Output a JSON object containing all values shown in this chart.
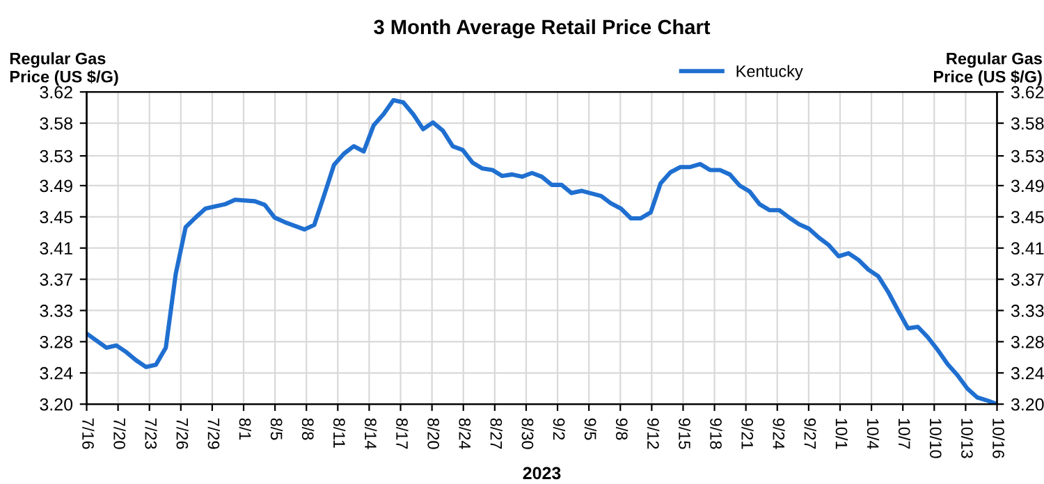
{
  "chart_data": {
    "type": "line",
    "title": "3 Month Average Retail Price Chart",
    "xlabel": "2023",
    "ylabel": "Regular Gas\nPrice (US $/G)",
    "y2label": "Regular Gas\nPrice (US $/G)",
    "x": [
      "2023-07-16",
      "2023-07-18",
      "2023-07-19",
      "2023-07-20",
      "2023-07-21",
      "2023-07-22",
      "2023-07-23",
      "2023-07-24",
      "2023-07-25",
      "2023-07-26",
      "2023-07-27",
      "2023-07-28",
      "2023-07-29",
      "2023-07-30",
      "2023-07-31",
      "2023-08-02",
      "2023-08-03",
      "2023-08-04",
      "2023-08-05",
      "2023-08-07",
      "2023-08-08",
      "2023-08-09",
      "2023-08-10",
      "2023-08-11",
      "2023-08-12",
      "2023-08-13",
      "2023-08-14",
      "2023-08-15",
      "2023-08-16",
      "2023-08-17",
      "2023-08-18",
      "2023-08-19",
      "2023-08-20",
      "2023-08-21",
      "2023-08-22",
      "2023-08-23",
      "2023-08-24",
      "2023-08-25",
      "2023-08-26",
      "2023-08-27",
      "2023-08-28",
      "2023-08-29",
      "2023-08-30",
      "2023-08-31",
      "2023-09-01",
      "2023-09-02",
      "2023-09-03",
      "2023-09-04",
      "2023-09-06",
      "2023-09-07",
      "2023-09-08",
      "2023-09-09",
      "2023-09-10",
      "2023-09-11",
      "2023-09-12",
      "2023-09-13",
      "2023-09-14",
      "2023-09-15",
      "2023-09-16",
      "2023-09-17",
      "2023-09-18",
      "2023-09-19",
      "2023-09-20",
      "2023-09-21",
      "2023-09-22",
      "2023-09-23",
      "2023-09-24",
      "2023-09-25",
      "2023-09-26",
      "2023-09-27",
      "2023-09-28",
      "2023-09-29",
      "2023-09-30",
      "2023-10-01",
      "2023-10-02",
      "2023-10-03",
      "2023-10-04",
      "2023-10-05",
      "2023-10-06",
      "2023-10-07",
      "2023-10-08",
      "2023-10-09",
      "2023-10-10",
      "2023-10-11",
      "2023-10-12",
      "2023-10-13",
      "2023-10-14",
      "2023-10-15",
      "2023-10-16"
    ],
    "series": [
      {
        "name": "Kentucky",
        "color": "#1f6fd0",
        "values": [
          3.295,
          3.276,
          3.279,
          3.27,
          3.259,
          3.25,
          3.253,
          3.276,
          3.375,
          3.438,
          3.451,
          3.463,
          3.466,
          3.469,
          3.475,
          3.473,
          3.468,
          3.451,
          3.445,
          3.435,
          3.441,
          3.481,
          3.522,
          3.537,
          3.547,
          3.54,
          3.575,
          3.59,
          3.609,
          3.606,
          3.59,
          3.57,
          3.579,
          3.568,
          3.547,
          3.542,
          3.525,
          3.517,
          3.515,
          3.507,
          3.509,
          3.506,
          3.511,
          3.506,
          3.495,
          3.495,
          3.484,
          3.487,
          3.48,
          3.47,
          3.463,
          3.45,
          3.45,
          3.458,
          3.497,
          3.512,
          3.519,
          3.519,
          3.523,
          3.515,
          3.515,
          3.509,
          3.494,
          3.486,
          3.469,
          3.461,
          3.461,
          3.451,
          3.442,
          3.436,
          3.424,
          3.414,
          3.399,
          3.403,
          3.394,
          3.381,
          3.372,
          3.351,
          3.326,
          3.302,
          3.304,
          3.29,
          3.273,
          3.254,
          3.239,
          3.221,
          3.209,
          3.205,
          3.2
        ]
      }
    ],
    "xlim": [
      "2023-07-16",
      "2023-10-16"
    ],
    "xticks": [
      {
        "value": "2023-07-16T00:00",
        "label": "7/16"
      },
      {
        "value": "2023-07-19T04:08",
        "label": "7/20"
      },
      {
        "value": "2023-07-22T08:17",
        "label": "7/23"
      },
      {
        "value": "2023-07-25T12:25",
        "label": "7/26"
      },
      {
        "value": "2023-07-28T16:33",
        "label": "7/29"
      },
      {
        "value": "2023-07-31T20:41",
        "label": "8/1"
      },
      {
        "value": "2023-08-04T00:50",
        "label": "8/5"
      },
      {
        "value": "2023-08-07T04:58",
        "label": "8/8"
      },
      {
        "value": "2023-08-10T09:06",
        "label": "8/11"
      },
      {
        "value": "2023-08-13T13:14",
        "label": "8/14"
      },
      {
        "value": "2023-08-16T17:23",
        "label": "8/17"
      },
      {
        "value": "2023-08-19T21:31",
        "label": "8/20"
      },
      {
        "value": "2023-08-23T01:39",
        "label": "8/24"
      },
      {
        "value": "2023-08-26T05:48",
        "label": "8/27"
      },
      {
        "value": "2023-08-29T09:56",
        "label": "8/30"
      },
      {
        "value": "2023-09-01T14:04",
        "label": "9/2"
      },
      {
        "value": "2023-09-04T18:12",
        "label": "9/5"
      },
      {
        "value": "2023-09-07T22:21",
        "label": "9/8"
      },
      {
        "value": "2023-09-11T02:29",
        "label": "9/12"
      },
      {
        "value": "2023-09-14T06:37",
        "label": "9/15"
      },
      {
        "value": "2023-09-17T10:46",
        "label": "9/18"
      },
      {
        "value": "2023-09-20T14:54",
        "label": "9/21"
      },
      {
        "value": "2023-09-23T19:02",
        "label": "9/24"
      },
      {
        "value": "2023-09-26T23:10",
        "label": "9/27"
      },
      {
        "value": "2023-09-30T03:19",
        "label": "10/1"
      },
      {
        "value": "2023-10-03T07:27",
        "label": "10/4"
      },
      {
        "value": "2023-10-06T11:35",
        "label": "10/7"
      },
      {
        "value": "2023-10-09T15:43",
        "label": "10/10"
      },
      {
        "value": "2023-10-12T19:52",
        "label": "10/13"
      },
      {
        "value": "2023-10-16T00:00",
        "label": "10/16"
      }
    ],
    "ylim": [
      3.2,
      3.62
    ],
    "yticks": [
      {
        "value": 3.2,
        "label": "3.20"
      },
      {
        "value": 3.242,
        "label": "3.24"
      },
      {
        "value": 3.284,
        "label": "3.28"
      },
      {
        "value": 3.326,
        "label": "3.33"
      },
      {
        "value": 3.368,
        "label": "3.37"
      },
      {
        "value": 3.41,
        "label": "3.41"
      },
      {
        "value": 3.452,
        "label": "3.45"
      },
      {
        "value": 3.494,
        "label": "3.49"
      },
      {
        "value": 3.534,
        "label": "3.53"
      },
      {
        "value": 3.578,
        "label": "3.58"
      },
      {
        "value": 3.62,
        "label": "3.62"
      }
    ],
    "y2lim": [
      3.2,
      3.62
    ],
    "y2ticks": [
      {
        "value": 3.2,
        "label": "3.20"
      },
      {
        "value": 3.242,
        "label": "3.24"
      },
      {
        "value": 3.284,
        "label": "3.28"
      },
      {
        "value": 3.326,
        "label": "3.33"
      },
      {
        "value": 3.368,
        "label": "3.37"
      },
      {
        "value": 3.41,
        "label": "3.41"
      },
      {
        "value": 3.452,
        "label": "3.45"
      },
      {
        "value": 3.494,
        "label": "3.49"
      },
      {
        "value": 3.534,
        "label": "3.53"
      },
      {
        "value": 3.578,
        "label": "3.58"
      },
      {
        "value": 3.62,
        "label": "3.62"
      }
    ],
    "grid": true,
    "legend": "top",
    "marker": "none",
    "line_style": "solid"
  }
}
